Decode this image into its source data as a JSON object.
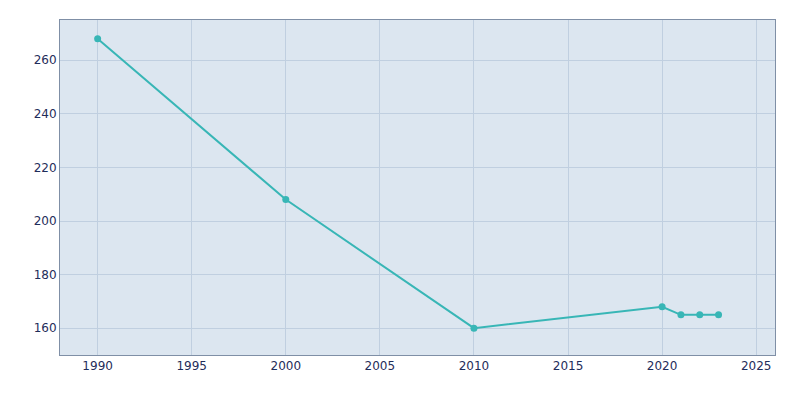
{
  "chart_data": {
    "type": "line",
    "x": [
      1990,
      2000,
      2010,
      2020,
      2021,
      2022,
      2023
    ],
    "values": [
      268,
      208,
      160,
      168,
      165,
      165,
      165
    ],
    "color": "#38b6b6",
    "marker": "circle",
    "xlim": [
      1988,
      2026
    ],
    "ylim": [
      150,
      275
    ],
    "xticks": [
      1990,
      1995,
      2000,
      2005,
      2010,
      2015,
      2020,
      2025
    ],
    "yticks": [
      160,
      180,
      200,
      220,
      240,
      260
    ],
    "grid": true
  }
}
